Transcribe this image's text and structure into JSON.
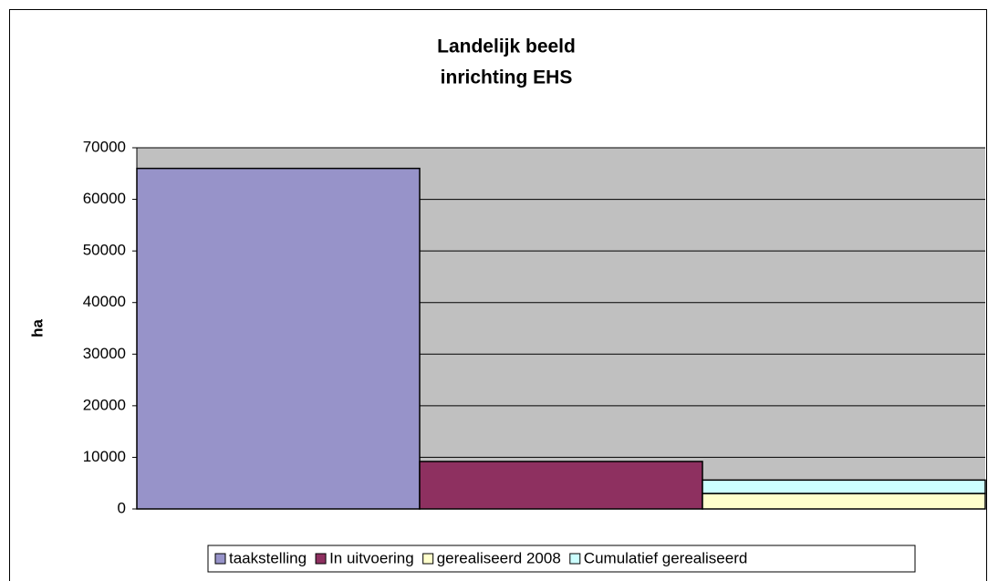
{
  "chart_data": {
    "type": "stacked_bar",
    "title": [
      "Landelijk beeld",
      "inrichting EHS"
    ],
    "y_label": "ha",
    "categories": [
      null,
      null,
      null
    ],
    "series": [
      {
        "name": "taakstelling",
        "color": "#9793c9",
        "values": [
          66000,
          null,
          null
        ]
      },
      {
        "name": "In uitvoering",
        "color": "#8e3060",
        "values": [
          null,
          9200,
          null
        ]
      },
      {
        "name": "gerealiseerd 2008",
        "color": "#ffffcc",
        "values": [
          null,
          null,
          3000
        ]
      },
      {
        "name": "Cumulatief gerealiseerd",
        "color": "#ccffff",
        "values": [
          null,
          null,
          2600
        ]
      }
    ],
    "ylim": [
      0,
      70000
    ],
    "yticks": [
      0,
      10000,
      20000,
      30000,
      40000,
      50000,
      60000,
      70000
    ],
    "grid": true,
    "legend": "bottom"
  }
}
